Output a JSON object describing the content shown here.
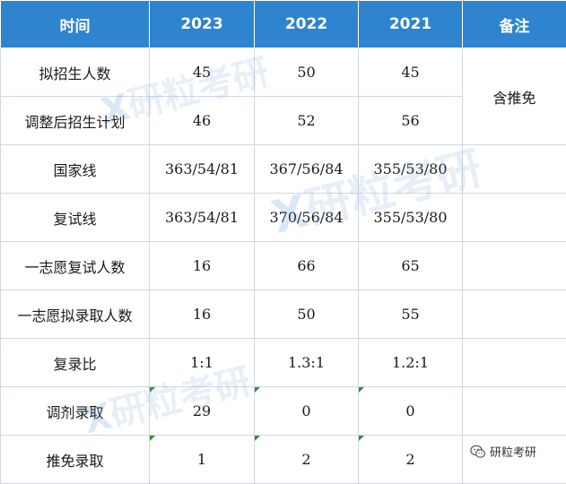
{
  "header": [
    "时间",
    "2023",
    "2022",
    "2021",
    "备注"
  ],
  "rows": [
    {
      "label": "拟招生人数",
      "y2023": "45",
      "y2022": "50",
      "y2021": "45"
    },
    {
      "label": "调整后招生计划",
      "y2023": "46",
      "y2022": "52",
      "y2021": "56"
    },
    {
      "label": "国家线",
      "y2023": "363/54/81",
      "y2022": "367/56/84",
      "y2021": "355/53/80"
    },
    {
      "label": "复试线",
      "y2023": "363/54/81",
      "y2022": "370/56/84",
      "y2021": "355/53/80"
    },
    {
      "label": "一志愿复试人数",
      "y2023": "16",
      "y2022": "66",
      "y2021": "65"
    },
    {
      "label": "一志愿拟录取人数",
      "y2023": "16",
      "y2022": "50",
      "y2021": "55"
    },
    {
      "label": "复录比",
      "y2023": "1:1",
      "y2022": "1.3:1",
      "y2021": "1.2:1"
    },
    {
      "label": "调剂录取",
      "y2023": "29",
      "y2022": "0",
      "y2021": "0"
    },
    {
      "label": "推免录取",
      "y2023": "1",
      "y2022": "2",
      "y2021": "2"
    }
  ],
  "note_merged": "含推免",
  "watermark": {
    "text": "研粒考研",
    "mark": "X"
  },
  "source_badge": "研粒考研",
  "colors": {
    "header_bg": "#2e84cf",
    "header_text": "#ffffff",
    "grid": "#cfd8e2",
    "watermark": "#a0b8dc"
  }
}
